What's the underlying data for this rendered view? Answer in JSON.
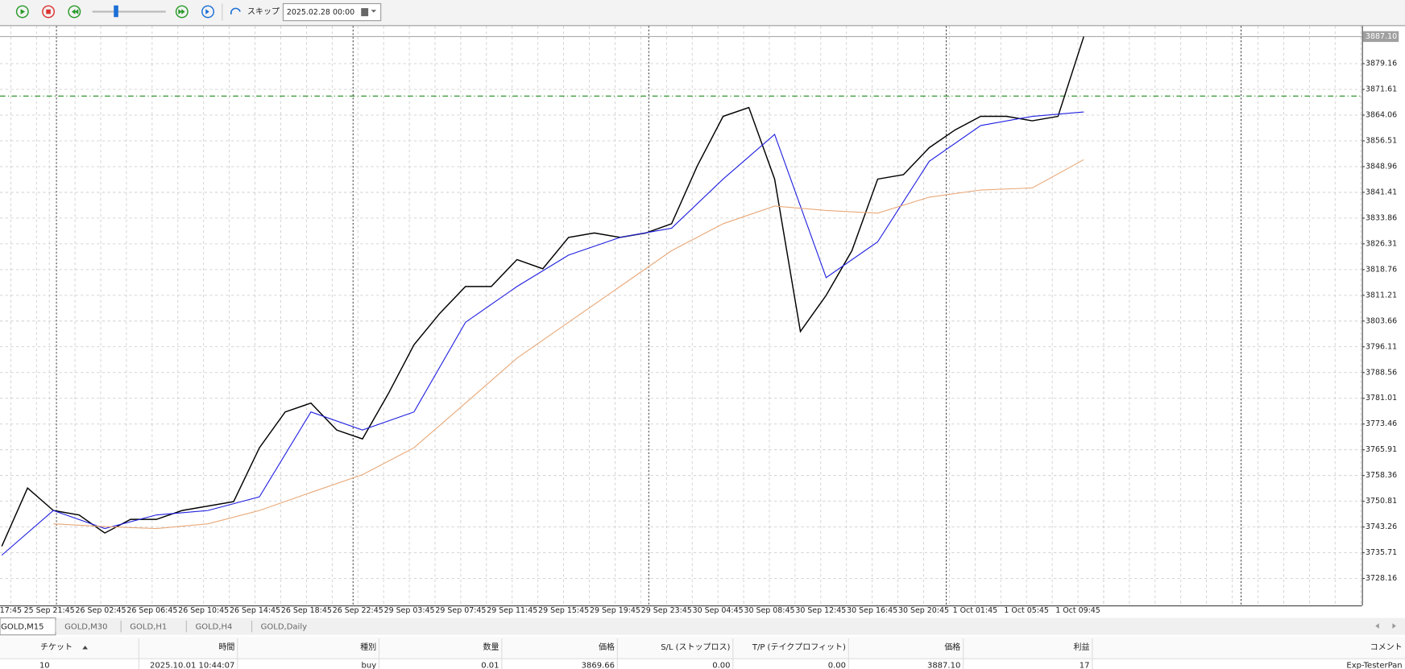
{
  "toolbar": {
    "skip": "スキップ",
    "date": "2025.02.28 00:00"
  },
  "chart_data": {
    "type": "line",
    "x_labels": [
      "17:45",
      "25 Sep 21:45",
      "26 Sep 02:45",
      "26 Sep 06:45",
      "26 Sep 10:45",
      "26 Sep 14:45",
      "26 Sep 18:45",
      "26 Sep 22:45",
      "29 Sep 03:45",
      "29 Sep 07:45",
      "29 Sep 11:45",
      "29 Sep 15:45",
      "29 Sep 19:45",
      "29 Sep 23:45",
      "30 Sep 04:45",
      "30 Sep 08:45",
      "30 Sep 12:45",
      "30 Sep 16:45",
      "30 Sep 20:45",
      "1 Oct 01:45",
      "1 Oct 05:45",
      "1 Oct 09:45"
    ],
    "series": [
      {
        "color": "#000000",
        "values": [
          3737.6,
          3754.7,
          3748.1,
          3746.8,
          3741.5,
          3745.5,
          3745.5,
          3748.1,
          3749.4,
          3750.7,
          3766.5,
          3777.0,
          3779.6,
          3771.7,
          3769.1,
          3782.3,
          3796.7,
          3805.9,
          3813.8,
          3813.8,
          3821.7,
          3819.0,
          3828.2,
          3829.5,
          3828.2,
          3829.5,
          3832.2,
          3849.2,
          3863.7,
          3866.3,
          3845.3,
          3800.6,
          3811.2,
          3824.3,
          3845.3,
          3846.6,
          3854.5,
          3859.7,
          3863.7,
          3863.7,
          3862.4,
          3863.7,
          3887.1
        ]
      },
      {
        "color": "#1f1fe0",
        "values": [
          3735.0,
          3748.1,
          3742.8,
          3746.8,
          3748.1,
          3752.1,
          3777.0,
          3771.7,
          3777.0,
          3803.3,
          3813.8,
          3823.0,
          3828.2,
          3830.9,
          3845.3,
          3858.4,
          3816.4,
          3826.9,
          3850.5,
          3861.0,
          3863.7,
          3865.0
        ]
      },
      {
        "color": "#e8a878",
        "values": [
          null,
          3744.2,
          3743.4,
          3742.8,
          3744.2,
          3748.1,
          3753.4,
          3758.6,
          3766.5,
          3779.6,
          3792.8,
          3803.3,
          3813.8,
          3824.3,
          3832.2,
          3837.4,
          3836.1,
          3835.3,
          3840.0,
          3842.1,
          3842.7,
          3851.0
        ]
      }
    ],
    "ylim": [
      3720.28,
      3890.19
    ],
    "yticks": [
      3879.16,
      3871.61,
      3864.06,
      3856.51,
      3848.96,
      3841.41,
      3833.86,
      3826.31,
      3818.76,
      3811.21,
      3803.66,
      3796.11,
      3788.56,
      3781.01,
      3773.46,
      3765.91,
      3758.36,
      3750.81,
      3743.26,
      3735.71,
      3728.16
    ],
    "grid": true
  },
  "tabs": [
    "GOLD,M15",
    "GOLD,M30",
    "GOLD,H1",
    "GOLD,H4",
    "GOLD,Daily"
  ],
  "table": {
    "header": [
      "チケット",
      "時間",
      "種別",
      "数量",
      "価格",
      "S/L (ストップロス)",
      "T/P (テイクプロフィット)",
      "価格",
      "利益",
      "コメント"
    ],
    "rows": [
      [
        "10",
        "2025.10.01 10:44:07",
        "buy",
        "0.01",
        "3869.66",
        "0.00",
        "0.00",
        "3887.10",
        "17",
        "Exp-TesterPan"
      ]
    ]
  }
}
